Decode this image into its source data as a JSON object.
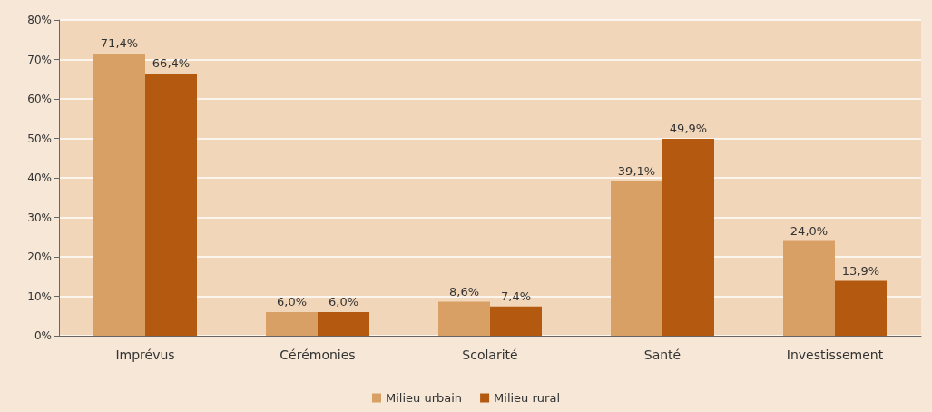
{
  "chart_data": {
    "type": "bar",
    "categories": [
      "Imprévus",
      "Cérémonies",
      "Scolarité",
      "Santé",
      "Investissement"
    ],
    "series": [
      {
        "name": "Milieu urbain",
        "color": "#d9a066",
        "values": [
          71.4,
          6.0,
          8.6,
          39.1,
          24.0
        ],
        "value_labels": [
          "71,4%",
          "6,0%",
          "8,6%",
          "39,1%",
          "24,0%"
        ]
      },
      {
        "name": "Milieu rural",
        "color": "#b35a10",
        "values": [
          66.4,
          6.0,
          7.4,
          49.9,
          13.9
        ],
        "value_labels": [
          "66,4%",
          "6,0%",
          "7,4%",
          "49,9%",
          "13,9%"
        ]
      }
    ],
    "ylim": [
      0,
      80
    ],
    "yticks": [
      {
        "value": 0,
        "label": "0%"
      },
      {
        "value": 10,
        "label": "10%"
      },
      {
        "value": 20,
        "label": "20%"
      },
      {
        "value": 30,
        "label": "30%"
      },
      {
        "value": 40,
        "label": "40%"
      },
      {
        "value": 50,
        "label": "50%"
      },
      {
        "value": 60,
        "label": "60%"
      },
      {
        "value": 70,
        "label": "70%"
      },
      {
        "value": 80,
        "label": "80%"
      }
    ],
    "grid": "y",
    "legend": "bottom"
  }
}
